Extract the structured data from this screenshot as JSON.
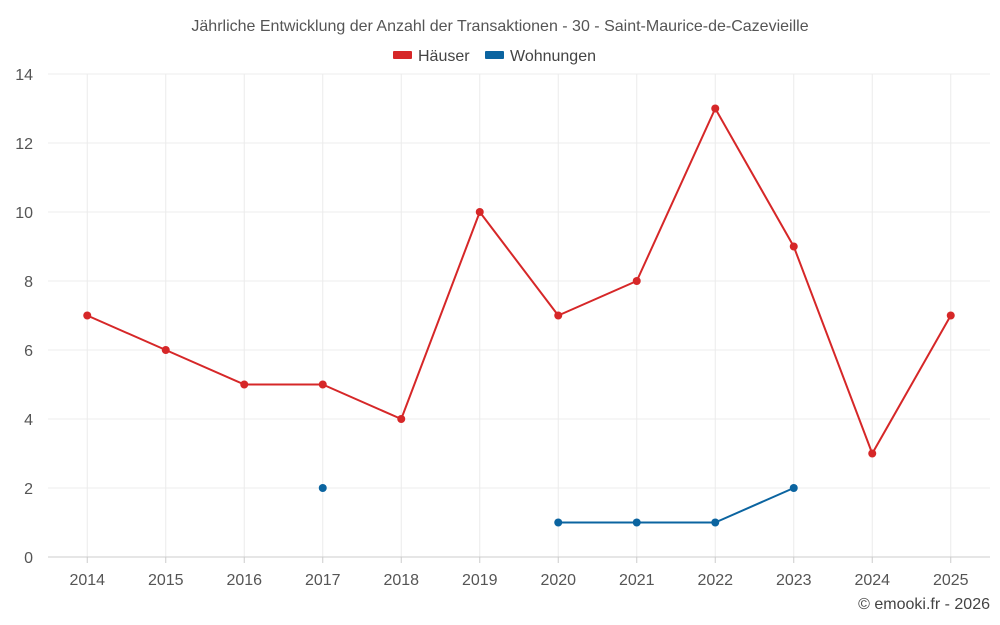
{
  "chart_data": {
    "type": "line",
    "title": "Jährliche Entwicklung der Anzahl der Transaktionen - 30 - Saint-Maurice-de-Cazevieille",
    "categories": [
      "2014",
      "2015",
      "2016",
      "2017",
      "2018",
      "2019",
      "2020",
      "2021",
      "2022",
      "2023",
      "2024",
      "2025"
    ],
    "ylim": [
      0,
      14
    ],
    "yticks": [
      0,
      2,
      4,
      6,
      8,
      10,
      12,
      14
    ],
    "grid": true,
    "legend_position": "top-center",
    "series": [
      {
        "name": "Häuser",
        "color": "#d62728",
        "values": [
          7,
          6,
          5,
          5,
          4,
          10,
          7,
          8,
          13,
          9,
          3,
          7
        ]
      },
      {
        "name": "Wohnungen",
        "color": "#0b64a0",
        "values": [
          null,
          null,
          null,
          2,
          null,
          null,
          1,
          1,
          1,
          2,
          null,
          null
        ]
      }
    ]
  },
  "credit": "© emooki.fr - 2026"
}
